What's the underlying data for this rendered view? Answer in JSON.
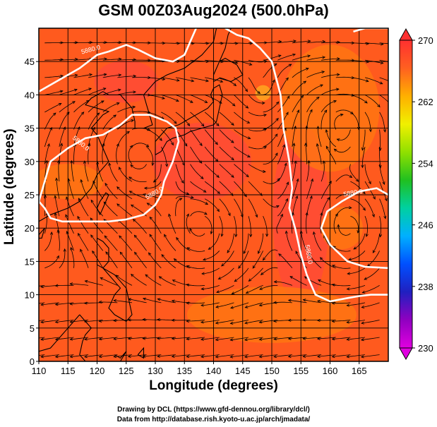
{
  "title": "GSM 00Z03Aug2024 (500.0hPa)",
  "credits": {
    "line1": "Drawing by DCL (https://www.gfd-dennou.org/library/dcl/)",
    "line2": "Data from http://database.rish.kyoto-u.ac.jp/arch/jmadata/"
  },
  "chart_data": {
    "type": "heatmap",
    "xlabel": "Longitude (degrees)",
    "ylabel": "Latitude  (degrees)",
    "xlim": [
      110,
      170
    ],
    "ylim": [
      0,
      50
    ],
    "x_ticks": [
      110,
      115,
      120,
      125,
      130,
      135,
      140,
      145,
      150,
      155,
      160,
      165
    ],
    "y_ticks": [
      0,
      5,
      10,
      15,
      20,
      25,
      30,
      35,
      40,
      45
    ],
    "colorbar": {
      "min": 230,
      "max": 270,
      "tick_values": [
        230,
        238,
        246,
        254,
        262,
        270
      ],
      "colors": [
        "#e000e0",
        "#9000c0",
        "#2020c0",
        "#0050ff",
        "#00b0ff",
        "#00d0a0",
        "#20c020",
        "#90e000",
        "#f0f000",
        "#ffb000",
        "#ff6020",
        "#ff3030"
      ]
    },
    "contour_label": "5880.0",
    "contour_value": 5880.0,
    "field_colors": {
      "base": "#ff5a1e",
      "warm_high": "#ff4a3a",
      "cool": "#ff7a10",
      "hot_spot": "#ffb020"
    },
    "grid": true,
    "streamlines": true
  }
}
